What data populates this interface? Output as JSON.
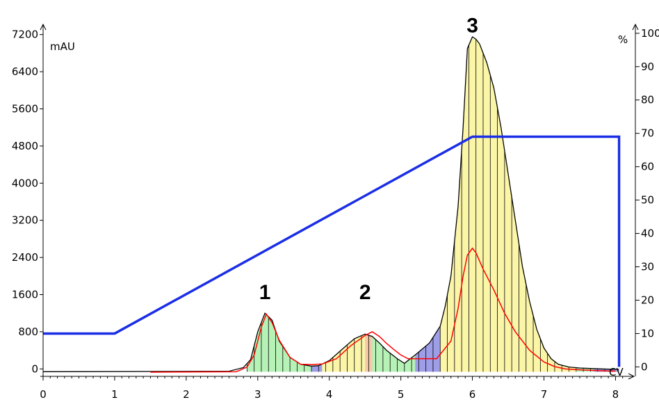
{
  "chart_data": {
    "type": "line",
    "title": "",
    "xlabel": "CV",
    "ylabel_left": "mAU",
    "ylabel_right": "%",
    "xlim": [
      0,
      8.2
    ],
    "ylim_left": [
      -100,
      7300
    ],
    "ylim_right": [
      -2,
      101
    ],
    "x_ticks": [
      "0",
      "1",
      "2",
      "3",
      "4",
      "5",
      "6",
      "7",
      "8"
    ],
    "y_left_ticks": [
      "0",
      "800",
      "1600",
      "2400",
      "3200",
      "4000",
      "4800",
      "5600",
      "6400",
      "7200"
    ],
    "y_right_ticks": [
      "0",
      "10",
      "20",
      "30",
      "40",
      "50",
      "60",
      "70",
      "80",
      "90",
      "100"
    ],
    "peak_labels": [
      {
        "text": "1",
        "x": 3.1,
        "y": 1500
      },
      {
        "text": "2",
        "x": 4.5,
        "y": 1500
      },
      {
        "text": "3",
        "x": 6.0,
        "y": 7250
      }
    ],
    "colors": {
      "absorbance": "#000000",
      "gradient": "#1a2ee6",
      "conductivity": "#ff0000",
      "fraction_green": "#b6f2b6",
      "fraction_yellow": "#fbf5a8",
      "fraction_blue": "#9e9ee8",
      "fraction_peach": "#f5c8a8"
    },
    "series": [
      {
        "name": "mAU",
        "axis": "left",
        "x": [
          0,
          2.6,
          2.8,
          2.9,
          3.0,
          3.1,
          3.2,
          3.3,
          3.45,
          3.6,
          3.75,
          3.85,
          4.0,
          4.2,
          4.35,
          4.5,
          4.6,
          4.7,
          4.8,
          4.95,
          5.05,
          5.2,
          5.4,
          5.55,
          5.62,
          5.7,
          5.8,
          5.87,
          5.93,
          6.0,
          6.05,
          6.1,
          6.2,
          6.3,
          6.4,
          6.5,
          6.6,
          6.7,
          6.8,
          6.9,
          7.0,
          7.1,
          7.2,
          7.35,
          7.5,
          7.8,
          8.05
        ],
        "y": [
          -60,
          -50,
          30,
          200,
          800,
          1200,
          1050,
          600,
          250,
          100,
          60,
          70,
          180,
          450,
          650,
          750,
          700,
          560,
          400,
          220,
          120,
          300,
          560,
          920,
          1350,
          2000,
          3500,
          5200,
          6900,
          7150,
          7100,
          7000,
          6600,
          6050,
          5200,
          4200,
          3200,
          2200,
          1450,
          850,
          450,
          220,
          100,
          40,
          20,
          0,
          -10
        ]
      },
      {
        "name": "%",
        "axis": "right",
        "x": [
          0,
          1.0,
          6.0,
          8.05,
          8.05
        ],
        "y": [
          10,
          10,
          69,
          69,
          0
        ]
      },
      {
        "name": "conductivity",
        "axis": "left",
        "x": [
          1.5,
          2.7,
          2.85,
          2.95,
          3.05,
          3.12,
          3.2,
          3.3,
          3.45,
          3.6,
          3.75,
          3.9,
          4.1,
          4.3,
          4.5,
          4.6,
          4.7,
          4.8,
          4.9,
          5.0,
          5.1,
          5.5,
          5.7,
          5.8,
          5.87,
          5.93,
          6.0,
          6.05,
          6.15,
          6.3,
          6.45,
          6.6,
          6.8,
          7.0,
          7.15,
          7.3,
          7.5,
          7.8,
          8.0
        ],
        "y": [
          -70,
          -60,
          40,
          300,
          900,
          1180,
          1000,
          620,
          250,
          100,
          95,
          105,
          220,
          500,
          720,
          800,
          700,
          550,
          420,
          300,
          220,
          220,
          600,
          1300,
          2000,
          2450,
          2600,
          2500,
          2150,
          1700,
          1200,
          800,
          400,
          150,
          50,
          0,
          -20,
          -40,
          -50
        ]
      }
    ],
    "fractions": [
      {
        "start": 2.85,
        "end": 3.75,
        "color": "green"
      },
      {
        "start": 3.75,
        "end": 3.9,
        "color": "blue"
      },
      {
        "start": 3.9,
        "end": 4.5,
        "color": "yellow"
      },
      {
        "start": 4.5,
        "end": 4.6,
        "color": "peach"
      },
      {
        "start": 4.6,
        "end": 5.2,
        "color": "green"
      },
      {
        "start": 5.2,
        "end": 5.55,
        "color": "blue"
      },
      {
        "start": 5.55,
        "end": 7.45,
        "color": "yellow"
      },
      {
        "start": 7.45,
        "end": 7.7,
        "color": "green"
      },
      {
        "start": 7.7,
        "end": 8.05,
        "color": "blue"
      }
    ],
    "grid": false
  }
}
